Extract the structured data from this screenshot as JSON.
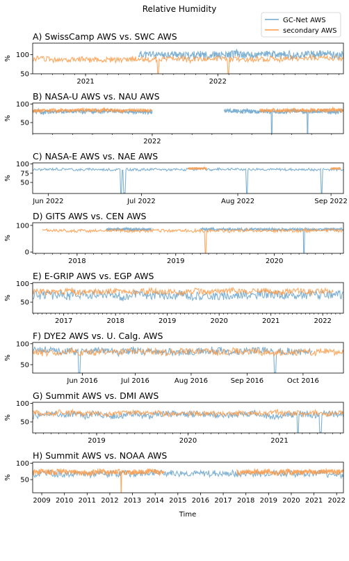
{
  "figure": {
    "suptitle": "Relative Humidity",
    "xlabel_bottom": "Time",
    "legend": [
      {
        "label": "GC-Net AWS",
        "color": "#6fa7cd"
      },
      {
        "label": "secondary AWS",
        "color": "#fd9a47"
      }
    ]
  },
  "chart_data": [
    {
      "type": "line",
      "title": "A) SwissCamp AWS vs. SWC AWS",
      "ylabel": "%",
      "ylim": [
        50,
        130
      ],
      "yticks": [
        50,
        100
      ],
      "xlim": [
        2020.6,
        2022.95
      ],
      "xticks": [
        {
          "v": 2021,
          "label": "2021"
        },
        {
          "v": 2022,
          "label": "2022"
        }
      ],
      "minor_ticks": 12,
      "series": [
        {
          "name": "GC-Net AWS",
          "color": "#6fa7cd",
          "segments": [
            [
              2021.4,
              2022.95
            ]
          ],
          "mean": 100,
          "amp": 12,
          "dips": [],
          "seed": 11
        },
        {
          "name": "secondary AWS",
          "color": "#fd9a47",
          "segments": [
            [
              2020.6,
              2022.95
            ]
          ],
          "mean": 88,
          "amp": 9,
          "dips": [
            2021.55,
            2022.08
          ],
          "seed": 12
        }
      ]
    },
    {
      "type": "line",
      "title": "B) NASA-U AWS vs. NAU AWS",
      "ylabel": "%",
      "ylim": [
        20,
        103
      ],
      "yticks": [
        50,
        100
      ],
      "xlim": [
        2021.5,
        2022.8
      ],
      "xticks": [
        {
          "v": 2022,
          "label": "2022"
        }
      ],
      "minor_ticks": 12,
      "series": [
        {
          "name": "GC-Net AWS",
          "color": "#6fa7cd",
          "segments": [
            [
              2021.5,
              2022.0
            ],
            [
              2022.3,
              2022.8
            ]
          ],
          "mean": 80,
          "amp": 7,
          "dips": [
            2022.5,
            2022.65
          ],
          "seed": 21
        },
        {
          "name": "secondary AWS",
          "color": "#fd9a47",
          "segments": [
            [
              2021.5,
              2022.0
            ],
            [
              2022.45,
              2022.8
            ]
          ],
          "mean": 83,
          "amp": 6,
          "dips": [],
          "seed": 22
        }
      ]
    },
    {
      "type": "line",
      "title": "C) NASA-E AWS vs. NAE AWS",
      "ylabel": "%",
      "ylim": [
        20,
        103
      ],
      "yticks": [
        50,
        75,
        100
      ],
      "xlim": [
        0,
        100
      ],
      "xticks": [
        {
          "v": 5,
          "label": "Jun 2022"
        },
        {
          "v": 35,
          "label": "Jul 2022"
        },
        {
          "v": 66,
          "label": "Aug 2022"
        },
        {
          "v": 96,
          "label": "Sep 2022"
        }
      ],
      "minor_ticks": 0,
      "series": [
        {
          "name": "GC-Net AWS",
          "color": "#6fa7cd",
          "segments": [
            [
              0,
              100
            ]
          ],
          "mean": 85,
          "amp": 4,
          "dips": [
            28.5,
            29.5,
            69,
            93
          ],
          "seed": 31
        },
        {
          "name": "secondary AWS",
          "color": "#fd9a47",
          "segments": [
            [
              50,
              56
            ],
            [
              96,
              99
            ]
          ],
          "mean": 88,
          "amp": 3,
          "dips": [],
          "seed": 32
        }
      ]
    },
    {
      "type": "line",
      "title": "D) GITS AWS vs. CEN AWS",
      "ylabel": "%",
      "ylim": [
        -5,
        110
      ],
      "yticks": [
        0,
        100
      ],
      "xlim": [
        2017.55,
        2020.7
      ],
      "xticks": [
        {
          "v": 2018,
          "label": "2018"
        },
        {
          "v": 2019,
          "label": "2019"
        },
        {
          "v": 2020,
          "label": "2020"
        }
      ],
      "minor_ticks": 12,
      "series": [
        {
          "name": "GC-Net AWS",
          "color": "#6fa7cd",
          "segments": [
            [
              2018.3,
              2018.75
            ],
            [
              2019.25,
              2020.7
            ]
          ],
          "mean": 85,
          "amp": 6,
          "dips": [
            2020.3
          ],
          "seed": 41
        },
        {
          "name": "secondary AWS",
          "color": "#fd9a47",
          "segments": [
            [
              2017.65,
              2020.7
            ]
          ],
          "mean": 80,
          "amp": 7,
          "dips": [
            2019.3
          ],
          "seed": 42
        }
      ]
    },
    {
      "type": "line",
      "title": "E) E-GRIP AWS vs. EGP AWS",
      "ylabel": "%",
      "ylim": [
        20,
        103
      ],
      "yticks": [
        50,
        100
      ],
      "xlim": [
        2016.4,
        2022.4
      ],
      "xticks": [
        {
          "v": 2017,
          "label": "2017"
        },
        {
          "v": 2018,
          "label": "2018"
        },
        {
          "v": 2019,
          "label": "2019"
        },
        {
          "v": 2020,
          "label": "2020"
        },
        {
          "v": 2021,
          "label": "2021"
        },
        {
          "v": 2022,
          "label": "2022"
        }
      ],
      "minor_ticks": 12,
      "series": [
        {
          "name": "GC-Net AWS",
          "color": "#6fa7cd",
          "segments": [
            [
              2016.4,
              2022.4
            ]
          ],
          "mean": 68,
          "amp": 14,
          "dips": [],
          "seed": 51
        },
        {
          "name": "secondary AWS",
          "color": "#fd9a47",
          "segments": [
            [
              2016.4,
              2022.2
            ]
          ],
          "mean": 78,
          "amp": 10,
          "dips": [],
          "seed": 52
        }
      ]
    },
    {
      "type": "line",
      "title": "F) DYE2 AWS vs. U. Calg. AWS",
      "ylabel": "%",
      "ylim": [
        30,
        103
      ],
      "yticks": [
        50,
        100
      ],
      "xlim": [
        0,
        100
      ],
      "xticks": [
        {
          "v": 16,
          "label": "Jun 2016"
        },
        {
          "v": 33,
          "label": "Jul 2016"
        },
        {
          "v": 51,
          "label": "Aug 2016"
        },
        {
          "v": 69,
          "label": "Sep 2016"
        },
        {
          "v": 87,
          "label": "Oct 2016"
        }
      ],
      "minor_ticks": 0,
      "series": [
        {
          "name": "GC-Net AWS",
          "color": "#6fa7cd",
          "segments": [
            [
              0,
              90
            ]
          ],
          "mean": 82,
          "amp": 10,
          "dips": [
            15,
            78
          ],
          "seed": 61
        },
        {
          "name": "secondary AWS",
          "color": "#fd9a47",
          "segments": [
            [
              0,
              100
            ]
          ],
          "mean": 80,
          "amp": 9,
          "dips": [],
          "seed": 62
        }
      ]
    },
    {
      "type": "line",
      "title": "G) Summit AWS vs. DMI AWS",
      "ylabel": "%",
      "ylim": [
        20,
        103
      ],
      "yticks": [
        50,
        100
      ],
      "xlim": [
        2018.3,
        2021.7
      ],
      "xticks": [
        {
          "v": 2019,
          "label": "2019"
        },
        {
          "v": 2020,
          "label": "2020"
        },
        {
          "v": 2021,
          "label": "2021"
        }
      ],
      "minor_ticks": 12,
      "series": [
        {
          "name": "GC-Net AWS",
          "color": "#6fa7cd",
          "segments": [
            [
              2018.3,
              2021.7
            ]
          ],
          "mean": 70,
          "amp": 11,
          "dips": [
            2021.2,
            2021.45
          ],
          "seed": 71
        },
        {
          "name": "secondary AWS",
          "color": "#fd9a47",
          "segments": [
            [
              2018.3,
              2021.7
            ]
          ],
          "mean": 73,
          "amp": 9,
          "dips": [],
          "seed": 72
        }
      ]
    },
    {
      "type": "line",
      "title": "H) Summit AWS vs. NOAA AWS",
      "ylabel": "%",
      "ylim": [
        10,
        103
      ],
      "yticks": [
        50,
        100
      ],
      "xlim": [
        2008.6,
        2022.3
      ],
      "xticks": [
        {
          "v": 2009,
          "label": "2009"
        },
        {
          "v": 2010,
          "label": "2010"
        },
        {
          "v": 2011,
          "label": "2011"
        },
        {
          "v": 2012,
          "label": "2012"
        },
        {
          "v": 2013,
          "label": "2013"
        },
        {
          "v": 2014,
          "label": "2014"
        },
        {
          "v": 2015,
          "label": "2015"
        },
        {
          "v": 2016,
          "label": "2016"
        },
        {
          "v": 2017,
          "label": "2017"
        },
        {
          "v": 2018,
          "label": "2018"
        },
        {
          "v": 2019,
          "label": "2019"
        },
        {
          "v": 2020,
          "label": "2020"
        },
        {
          "v": 2021,
          "label": "2021"
        },
        {
          "v": 2022,
          "label": "2022"
        }
      ],
      "minor_ticks": 0,
      "series": [
        {
          "name": "GC-Net AWS",
          "color": "#6fa7cd",
          "segments": [
            [
              2008.6,
              2022.3
            ]
          ],
          "mean": 68,
          "amp": 12,
          "dips": [],
          "seed": 81
        },
        {
          "name": "secondary AWS",
          "color": "#fd9a47",
          "segments": [
            [
              2008.6,
              2014.4
            ],
            [
              2017.6,
              2022.3
            ]
          ],
          "mean": 73,
          "amp": 10,
          "dips": [
            2012.5
          ],
          "seed": 82
        }
      ]
    }
  ]
}
